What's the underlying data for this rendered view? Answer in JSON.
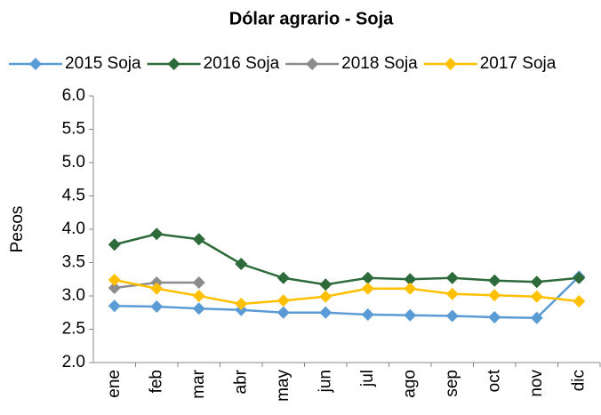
{
  "chart_data": {
    "type": "line",
    "title": "Dólar agrario - Soja",
    "y_label": "Pesos",
    "categories": [
      "ene",
      "feb",
      "mar",
      "abr",
      "may",
      "jun",
      "jul",
      "ago",
      "sep",
      "oct",
      "nov",
      "dic"
    ],
    "series": [
      {
        "name": "2015 Soja",
        "color": "#5b9bd5",
        "values": [
          2.85,
          2.84,
          2.81,
          2.79,
          2.75,
          2.75,
          2.72,
          2.71,
          2.7,
          2.68,
          2.67,
          3.29
        ]
      },
      {
        "name": "2016 Soja",
        "color": "#2e6b3a",
        "values": [
          3.77,
          3.93,
          3.85,
          3.48,
          3.27,
          3.17,
          3.27,
          3.25,
          3.27,
          3.23,
          3.21,
          3.27
        ]
      },
      {
        "name": "2018 Soja",
        "color": "#8c8c8c",
        "values": [
          3.12,
          3.2,
          3.2,
          null,
          null,
          null,
          null,
          null,
          null,
          null,
          null,
          null
        ]
      },
      {
        "name": "2017 Soja",
        "color": "#ffc000",
        "values": [
          3.24,
          3.11,
          3.0,
          2.88,
          2.93,
          2.99,
          3.11,
          3.11,
          3.03,
          3.01,
          2.99,
          2.92
        ]
      }
    ],
    "ylim": [
      2,
      6
    ],
    "yticks": [
      {
        "value": 2,
        "label": "2.0"
      },
      {
        "value": 2.5,
        "label": "2.5"
      },
      {
        "value": 3,
        "label": "3.0"
      },
      {
        "value": 3.5,
        "label": "3.5"
      },
      {
        "value": 4,
        "label": "4.0"
      },
      {
        "value": 4.5,
        "label": "4.5"
      },
      {
        "value": 5,
        "label": "5.0"
      },
      {
        "value": 5.5,
        "label": "5.5"
      },
      {
        "value": 6,
        "label": "6.0"
      }
    ],
    "grid": false,
    "legend": "top"
  }
}
